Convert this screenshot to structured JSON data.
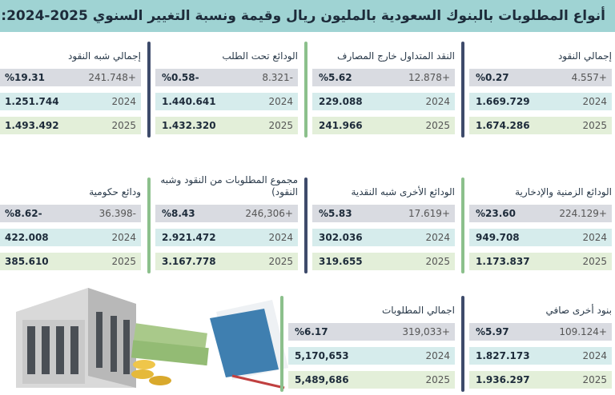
{
  "title": "أنواع المطلوبات بالبنوك السعودية بالمليون ريال وقيمة ونسبة التغيير السنوي 2025-2024:",
  "panels": [
    {
      "title": "إجمالي النقود",
      "change": "4.557+",
      "percent": "%0.27",
      "rows": [
        {
          "year": "2024",
          "value": "1.669.729"
        },
        {
          "year": "2025",
          "value": "1.674.286"
        }
      ]
    },
    {
      "title": "النقد المتداول خارج المصارف",
      "change": "12.878+",
      "percent": "%5.62",
      "rows": [
        {
          "year": "2024",
          "value": "229.088"
        },
        {
          "year": "2025",
          "value": "241.966"
        }
      ]
    },
    {
      "title": "الودائع تحت الطلب",
      "change": "8.321-",
      "percent": "%0.58-",
      "rows": [
        {
          "year": "2024",
          "value": "1.440.641"
        },
        {
          "year": "2025",
          "value": "1.432.320"
        }
      ]
    },
    {
      "title": "إجمالي شبه النقود",
      "change": "241.748+",
      "percent": "%19.31",
      "rows": [
        {
          "year": "2024",
          "value": "1.251.744"
        },
        {
          "year": "2025",
          "value": "1.493.492"
        }
      ]
    },
    {
      "title": "الودائع الزمنية والإدخارية",
      "change": "224.129+",
      "percent": "%23.60",
      "rows": [
        {
          "year": "2024",
          "value": "949.708"
        },
        {
          "year": "2025",
          "value": "1.173.837"
        }
      ]
    },
    {
      "title": "الودائع الأخرى شبه النقدية",
      "change": "17.619+",
      "percent": "%5.83",
      "rows": [
        {
          "year": "2024",
          "value": "302.036"
        },
        {
          "year": "2025",
          "value": "319.655"
        }
      ]
    },
    {
      "title": "مجموع المطلوبات من النقود وشبه النقود)",
      "change": "246,306+",
      "percent": "%8.43",
      "rows": [
        {
          "year": "2024",
          "value": "2.921.472"
        },
        {
          "year": "2025",
          "value": "3.167.778"
        }
      ]
    },
    {
      "title": "ودائع حكومية",
      "change": "36.398-",
      "percent": "%8.62-",
      "rows": [
        {
          "year": "2024",
          "value": "422.008"
        },
        {
          "year": "2025",
          "value": "385.610"
        }
      ]
    },
    {
      "title": "بنود أخرى صافي",
      "change": "109.124+",
      "percent": "%5.97",
      "rows": [
        {
          "year": "2024",
          "value": "1.827.173"
        },
        {
          "year": "2025",
          "value": "1.936.297"
        }
      ]
    },
    {
      "title": "اجمالي المطلوبات",
      "change": "319,033+",
      "percent": "%6.17",
      "rows": [
        {
          "year": "2024",
          "value": "5,170,653"
        },
        {
          "year": "2025",
          "value": "5,489,686"
        }
      ]
    }
  ]
}
